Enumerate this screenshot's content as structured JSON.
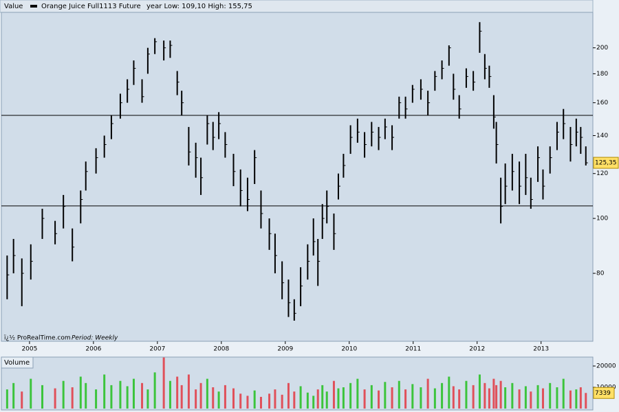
{
  "chart_data": {
    "type": "ohlc",
    "header_label": "Value",
    "title": "Orange Juice Full1113 Future",
    "subtitle": "year Low: 109,10 High: 155,75",
    "footer": "ï¿½ ProRealTime.com",
    "period": "Period: Weekly",
    "volume_title": "Volume",
    "log_scale": true,
    "color": "#000000",
    "up_color": "#3cc43c",
    "down_color": "#e0505a",
    "xlim": [
      2004.56,
      2013.81
    ],
    "xticks": [
      2005,
      2006,
      2007,
      2008,
      2009,
      2010,
      2011,
      2012,
      2013
    ],
    "ylim": [
      60.7,
      231
    ],
    "yticks": [
      80,
      100,
      120,
      140,
      160,
      180,
      200
    ],
    "hlines": [
      152,
      105.2
    ],
    "last_price": {
      "value": 125.35,
      "label": "125,35"
    },
    "x": [
      2004.65,
      2004.75,
      2004.88,
      2005.02,
      2005.2,
      2005.4,
      2005.53,
      2005.67,
      2005.8,
      2005.88,
      2006.04,
      2006.17,
      2006.28,
      2006.42,
      2006.53,
      2006.63,
      2006.76,
      2006.85,
      2006.96,
      2007.1,
      2007.2,
      2007.31,
      2007.38,
      2007.49,
      2007.6,
      2007.68,
      2007.78,
      2007.87,
      2007.96,
      2008.06,
      2008.19,
      2008.3,
      2008.41,
      2008.52,
      2008.62,
      2008.75,
      2008.84,
      2008.95,
      2009.05,
      2009.14,
      2009.24,
      2009.35,
      2009.44,
      2009.51,
      2009.58,
      2009.65,
      2009.76,
      2009.83,
      2009.91,
      2010.02,
      2010.13,
      2010.24,
      2010.35,
      2010.46,
      2010.56,
      2010.67,
      2010.78,
      2010.88,
      2010.99,
      2011.12,
      2011.23,
      2011.34,
      2011.45,
      2011.56,
      2011.63,
      2011.72,
      2011.83,
      2011.94,
      2012.04,
      2012.12,
      2012.19,
      2012.26,
      2012.3,
      2012.37,
      2012.44,
      2012.55,
      2012.66,
      2012.76,
      2012.84,
      2012.95,
      2013.03,
      2013.14,
      2013.25,
      2013.35,
      2013.46,
      2013.55,
      2013.62,
      2013.7
    ],
    "high": [
      86,
      92,
      85,
      90,
      104,
      99,
      110,
      96,
      112,
      126,
      133,
      140,
      152,
      166,
      176,
      190,
      176,
      200,
      208,
      206,
      206,
      182,
      168,
      145,
      136,
      128,
      152,
      148,
      154,
      142,
      130,
      122,
      118,
      132,
      112,
      100,
      94,
      84,
      78,
      72,
      82,
      90,
      100,
      92,
      106,
      112,
      102,
      120,
      130,
      146,
      150,
      142,
      148,
      145,
      150,
      146,
      164,
      164,
      172,
      176,
      168,
      182,
      190,
      202,
      180,
      165,
      184,
      182,
      222,
      195,
      186,
      165,
      148,
      118,
      125,
      130,
      126,
      130,
      118,
      134,
      122,
      134,
      148,
      156,
      145,
      150,
      145,
      134
    ],
    "low": [
      72,
      80,
      70,
      78,
      92,
      90,
      96,
      84,
      98,
      112,
      120,
      128,
      138,
      150,
      160,
      172,
      160,
      180,
      195,
      190,
      192,
      165,
      152,
      124,
      118,
      110,
      135,
      132,
      138,
      128,
      114,
      105,
      103,
      115,
      96,
      88,
      80,
      72,
      67,
      66,
      70,
      78,
      86,
      76,
      92,
      98,
      88,
      108,
      118,
      130,
      136,
      128,
      134,
      132,
      138,
      132,
      150,
      150,
      160,
      162,
      152,
      168,
      176,
      186,
      162,
      150,
      170,
      168,
      196,
      176,
      170,
      144,
      125,
      98,
      106,
      112,
      106,
      110,
      104,
      116,
      108,
      120,
      132,
      138,
      126,
      134,
      130,
      124
    ],
    "close": [
      79.5,
      86,
      80,
      84,
      100,
      94,
      105,
      89,
      108,
      121,
      128,
      135,
      147,
      160,
      169,
      184,
      164,
      195,
      205,
      200,
      202,
      174,
      160,
      131,
      128,
      118,
      147,
      139,
      147,
      135,
      121,
      112,
      108,
      128,
      102,
      94,
      86,
      77,
      71,
      68,
      76,
      84,
      91,
      84,
      100,
      105,
      94,
      114,
      124,
      139,
      142,
      135,
      142,
      139,
      145,
      139,
      160,
      156,
      169,
      169,
      160,
      178,
      184,
      200,
      169,
      156,
      178,
      174,
      214,
      184,
      178,
      151,
      135,
      105,
      114,
      121,
      114,
      118,
      108,
      128,
      114,
      128,
      142,
      147,
      135,
      142,
      139,
      125.35
    ],
    "volume": [
      9000,
      12000,
      8000,
      14000,
      11000,
      9500,
      13000,
      10000,
      15000,
      12000,
      9000,
      16000,
      11000,
      13000,
      10500,
      14000,
      12000,
      9000,
      17000,
      24000,
      13000,
      15000,
      11000,
      16000,
      9000,
      12000,
      14000,
      10000,
      8000,
      11000,
      9500,
      7000,
      6000,
      8500,
      5500,
      7000,
      9000,
      6500,
      12000,
      8000,
      10500,
      7500,
      6000,
      9000,
      11000,
      8000,
      13000,
      9500,
      10000,
      12000,
      14000,
      9000,
      11000,
      8500,
      12500,
      10000,
      13000,
      9000,
      11500,
      10000,
      14000,
      9500,
      12000,
      15000,
      10500,
      9000,
      13000,
      11000,
      16000,
      12000,
      9500,
      14000,
      11000,
      13000,
      10000,
      12000,
      9000,
      10500,
      8000,
      11000,
      9500,
      12000,
      10000,
      14000,
      8500,
      9000,
      10000,
      7339
    ],
    "volume_ylim": [
      0,
      24200
    ],
    "volume_ticks": [
      10000,
      20000
    ],
    "last_volume": 7339
  }
}
